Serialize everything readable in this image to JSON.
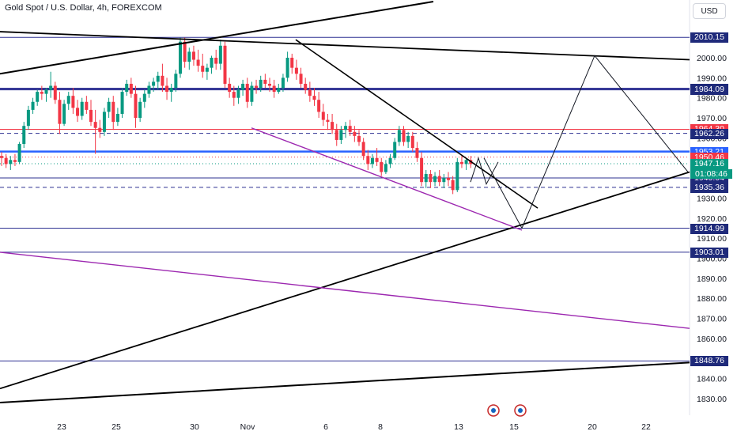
{
  "header": {
    "title": "Gold Spot / U.S. Dollar, 4h, FOREXCOM",
    "currency": "USD"
  },
  "chart_data": {
    "type": "candlestick",
    "title": "Gold Spot / U.S. Dollar, 4h, FOREXCOM",
    "x_ticks": [
      "23",
      "25",
      "30",
      "Nov",
      "6",
      "8",
      "13",
      "15",
      "20",
      "22"
    ],
    "y_ticks": [
      1830,
      1840,
      1850,
      1860,
      1870,
      1880,
      1890,
      1900,
      1910,
      1920,
      1930,
      1940,
      1950,
      1960,
      1970,
      1980,
      1990,
      2000,
      2010
    ],
    "price_labels": [
      {
        "value": "2010.15",
        "color": "#2e3192",
        "style": "solid"
      },
      {
        "value": "1984.73",
        "color": "#2e3192",
        "style": "solid"
      },
      {
        "value": "1984.09",
        "color": "#2e3192",
        "style": "solid"
      },
      {
        "value": "1964.30",
        "color": "#f23645",
        "style": "solid"
      },
      {
        "value": "1962.26",
        "color": "#2e3192",
        "style": "dashed"
      },
      {
        "value": "1953.21",
        "color": "#2962ff",
        "style": "solid"
      },
      {
        "value": "1950.46",
        "color": "#f23645",
        "style": "dotted"
      },
      {
        "value": "1947.16",
        "color": "#089981",
        "style": "dotted"
      },
      {
        "value": "1940.04",
        "color": "#2e3192",
        "style": "solid"
      },
      {
        "value": "1935.36",
        "color": "#2e3192",
        "style": "dashed"
      },
      {
        "value": "1914.99",
        "color": "#2e3192",
        "style": "solid"
      },
      {
        "value": "1903.01",
        "color": "#2e3192",
        "style": "solid"
      },
      {
        "value": "1848.76",
        "color": "#2e3192",
        "style": "solid"
      }
    ],
    "countdown": "01:08:46",
    "up_color": "#089981",
    "down_color": "#f23645",
    "candles": [
      [
        1951,
        1953,
        1946,
        1950
      ],
      [
        1950,
        1952,
        1945,
        1947
      ],
      [
        1947,
        1951,
        1944,
        1949
      ],
      [
        1949,
        1952,
        1946,
        1948
      ],
      [
        1948,
        1958,
        1947,
        1957
      ],
      [
        1957,
        1968,
        1955,
        1966
      ],
      [
        1966,
        1976,
        1964,
        1974
      ],
      [
        1974,
        1980,
        1972,
        1978
      ],
      [
        1978,
        1984,
        1976,
        1983
      ],
      [
        1983,
        1986,
        1979,
        1982
      ],
      [
        1982,
        1985,
        1978,
        1984
      ],
      [
        1984,
        1993,
        1980,
        1986
      ],
      [
        1986,
        1988,
        1977,
        1979
      ],
      [
        1979,
        1983,
        1962,
        1967
      ],
      [
        1967,
        1979,
        1966,
        1977
      ],
      [
        1977,
        1983,
        1974,
        1981
      ],
      [
        1981,
        1985,
        1972,
        1975
      ],
      [
        1975,
        1979,
        1968,
        1971
      ],
      [
        1971,
        1980,
        1969,
        1978
      ],
      [
        1978,
        1981,
        1972,
        1974
      ],
      [
        1974,
        1979,
        1966,
        1968
      ],
      [
        1968,
        1974,
        1952,
        1965
      ],
      [
        1965,
        1969,
        1960,
        1963
      ],
      [
        1963,
        1975,
        1961,
        1973
      ],
      [
        1973,
        1980,
        1970,
        1978
      ],
      [
        1978,
        1981,
        1964,
        1968
      ],
      [
        1968,
        1975,
        1966,
        1972
      ],
      [
        1972,
        1985,
        1970,
        1983
      ],
      [
        1983,
        1989,
        1981,
        1987
      ],
      [
        1987,
        1990,
        1980,
        1982
      ],
      [
        1982,
        1986,
        1965,
        1970
      ],
      [
        1970,
        1980,
        1968,
        1978
      ],
      [
        1978,
        1984,
        1975,
        1982
      ],
      [
        1982,
        1988,
        1980,
        1986
      ],
      [
        1986,
        1990,
        1983,
        1988
      ],
      [
        1988,
        1993,
        1984,
        1991
      ],
      [
        1991,
        1997,
        1983,
        1986
      ],
      [
        1986,
        1990,
        1979,
        1983
      ],
      [
        1983,
        1987,
        1978,
        1985
      ],
      [
        1985,
        1994,
        1983,
        1992
      ],
      [
        1992,
        2010,
        1990,
        2008
      ],
      [
        2008,
        2010,
        1995,
        1998
      ],
      [
        1998,
        2005,
        1994,
        2003
      ],
      [
        2003,
        2006,
        1996,
        1999
      ],
      [
        1999,
        2004,
        1993,
        1996
      ],
      [
        1996,
        2002,
        1990,
        1993
      ],
      [
        1993,
        1997,
        1989,
        1995
      ],
      [
        1995,
        2001,
        1992,
        2000
      ],
      [
        2000,
        2004,
        1994,
        1997
      ],
      [
        1997,
        2009,
        1994,
        2006
      ],
      [
        2006,
        2008,
        1985,
        1987
      ],
      [
        1987,
        1990,
        1980,
        1983
      ],
      [
        1983,
        1986,
        1976,
        1980
      ],
      [
        1980,
        1986,
        1977,
        1984
      ],
      [
        1984,
        1989,
        1981,
        1987
      ],
      [
        1987,
        1990,
        1975,
        1978
      ],
      [
        1978,
        1988,
        1976,
        1986
      ],
      [
        1986,
        1989,
        1982,
        1985
      ],
      [
        1985,
        1991,
        1983,
        1989
      ],
      [
        1989,
        1992,
        1985,
        1987
      ],
      [
        1987,
        1990,
        1983,
        1986
      ],
      [
        1986,
        1989,
        1980,
        1983
      ],
      [
        1983,
        1987,
        1982,
        1985
      ],
      [
        1985,
        1992,
        1983,
        1990
      ],
      [
        1990,
        2003,
        1988,
        2000
      ],
      [
        2000,
        2002,
        1992,
        1995
      ],
      [
        1995,
        1999,
        1989,
        1992
      ],
      [
        1992,
        1995,
        1985,
        1987
      ],
      [
        1987,
        1990,
        1982,
        1984
      ],
      [
        1984,
        1988,
        1978,
        1981
      ],
      [
        1981,
        1985,
        1976,
        1979
      ],
      [
        1979,
        1983,
        1970,
        1973
      ],
      [
        1973,
        1977,
        1966,
        1969
      ],
      [
        1969,
        1972,
        1964,
        1968
      ],
      [
        1968,
        1972,
        1962,
        1964
      ],
      [
        1964,
        1967,
        1956,
        1959
      ],
      [
        1959,
        1966,
        1957,
        1964
      ],
      [
        1964,
        1968,
        1960,
        1966
      ],
      [
        1966,
        1969,
        1961,
        1963
      ],
      [
        1963,
        1966,
        1958,
        1961
      ],
      [
        1961,
        1964,
        1956,
        1958
      ],
      [
        1958,
        1960,
        1949,
        1951
      ],
      [
        1951,
        1954,
        1944,
        1947
      ],
      [
        1947,
        1952,
        1945,
        1950
      ],
      [
        1950,
        1955,
        1946,
        1948
      ],
      [
        1948,
        1950,
        1941,
        1943
      ],
      [
        1943,
        1949,
        1942,
        1947
      ],
      [
        1947,
        1952,
        1945,
        1950
      ],
      [
        1950,
        1960,
        1949,
        1958
      ],
      [
        1958,
        1966,
        1956,
        1964
      ],
      [
        1964,
        1966,
        1956,
        1958
      ],
      [
        1958,
        1963,
        1955,
        1961
      ],
      [
        1961,
        1963,
        1953,
        1955
      ],
      [
        1955,
        1958,
        1948,
        1950
      ],
      [
        1950,
        1953,
        1936,
        1938
      ],
      [
        1938,
        1944,
        1935,
        1942
      ],
      [
        1942,
        1944,
        1935,
        1938
      ],
      [
        1938,
        1943,
        1936,
        1941
      ],
      [
        1941,
        1944,
        1936,
        1938
      ],
      [
        1938,
        1942,
        1935,
        1940
      ],
      [
        1940,
        1943,
        1936,
        1939
      ],
      [
        1939,
        1941,
        1932,
        1934
      ],
      [
        1934,
        1950,
        1933,
        1948
      ],
      [
        1948,
        1951,
        1945,
        1947
      ],
      [
        1947,
        1950,
        1944,
        1949
      ],
      [
        1949,
        1951,
        1945,
        1947
      ]
    ]
  }
}
